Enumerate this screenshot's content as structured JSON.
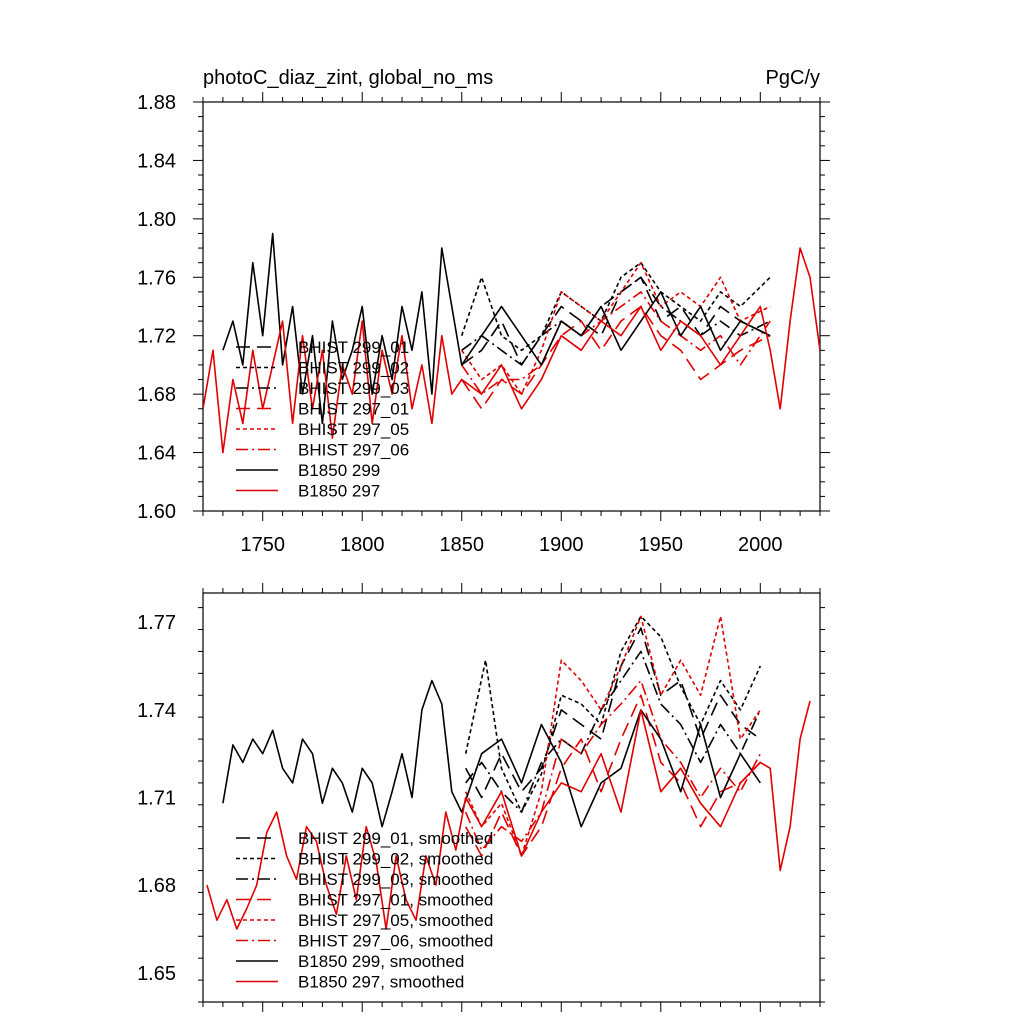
{
  "chart_data": [
    {
      "type": "line",
      "title": "photoC_diaz_zint, global_no_ms",
      "units": "PgC/y",
      "xlim": [
        1720,
        2030
      ],
      "ylim": [
        1.6,
        1.88
      ],
      "xticks": [
        1750,
        1800,
        1850,
        1900,
        1950,
        2000
      ],
      "yticks": [
        1.6,
        1.64,
        1.68,
        1.72,
        1.76,
        1.8,
        1.84,
        1.88
      ],
      "ytick_labels": [
        "1.60",
        "1.64",
        "1.68",
        "1.72",
        "1.76",
        "1.80",
        "1.84",
        "1.88"
      ],
      "legend": [
        "BHIST 299_01",
        "BHIST 299_02",
        "BHIST 299_03",
        "BHIST 297_01",
        "BHIST 297_05",
        "BHIST 297_06",
        "B1850 299",
        "B1850 297"
      ],
      "series": [
        {
          "name": "BHIST 299_01",
          "color": "#000000",
          "dash": "long-dash",
          "x": [
            1850,
            1860,
            1870,
            1880,
            1890,
            1900,
            1910,
            1920,
            1930,
            1940,
            1950,
            1960,
            1970,
            1980,
            1990,
            2005
          ],
          "y": [
            1.7,
            1.71,
            1.73,
            1.7,
            1.72,
            1.74,
            1.73,
            1.72,
            1.75,
            1.76,
            1.73,
            1.74,
            1.72,
            1.74,
            1.73,
            1.72
          ]
        },
        {
          "name": "BHIST 299_02",
          "color": "#000000",
          "dash": "short-dash",
          "x": [
            1850,
            1860,
            1870,
            1880,
            1890,
            1900,
            1910,
            1920,
            1930,
            1940,
            1950,
            1960,
            1970,
            1980,
            1990,
            2005
          ],
          "y": [
            1.72,
            1.76,
            1.72,
            1.71,
            1.72,
            1.75,
            1.74,
            1.73,
            1.76,
            1.77,
            1.75,
            1.74,
            1.73,
            1.75,
            1.74,
            1.76
          ]
        },
        {
          "name": "BHIST 299_03",
          "color": "#000000",
          "dash": "dash-dot",
          "x": [
            1850,
            1860,
            1870,
            1880,
            1890,
            1900,
            1910,
            1920,
            1930,
            1940,
            1950,
            1960,
            1970,
            1980,
            1990,
            2005
          ],
          "y": [
            1.71,
            1.72,
            1.71,
            1.7,
            1.72,
            1.73,
            1.72,
            1.74,
            1.75,
            1.76,
            1.74,
            1.73,
            1.72,
            1.73,
            1.72,
            1.73
          ]
        },
        {
          "name": "BHIST 297_01",
          "color": "#e00000",
          "dash": "long-dash",
          "x": [
            1850,
            1860,
            1870,
            1880,
            1890,
            1900,
            1910,
            1920,
            1930,
            1940,
            1950,
            1960,
            1970,
            1980,
            1990,
            2005
          ],
          "y": [
            1.69,
            1.67,
            1.69,
            1.68,
            1.7,
            1.72,
            1.73,
            1.71,
            1.73,
            1.74,
            1.72,
            1.71,
            1.69,
            1.7,
            1.71,
            1.72
          ]
        },
        {
          "name": "BHIST 297_05",
          "color": "#e00000",
          "dash": "short-dash",
          "x": [
            1850,
            1860,
            1870,
            1880,
            1890,
            1900,
            1910,
            1920,
            1930,
            1940,
            1950,
            1960,
            1970,
            1980,
            1990,
            2005
          ],
          "y": [
            1.71,
            1.69,
            1.7,
            1.68,
            1.71,
            1.75,
            1.74,
            1.73,
            1.75,
            1.77,
            1.74,
            1.75,
            1.74,
            1.76,
            1.73,
            1.74
          ]
        },
        {
          "name": "BHIST 297_06",
          "color": "#e00000",
          "dash": "dash-dot",
          "x": [
            1850,
            1860,
            1870,
            1880,
            1890,
            1900,
            1910,
            1920,
            1930,
            1940,
            1950,
            1960,
            1970,
            1980,
            1990,
            2005
          ],
          "y": [
            1.7,
            1.68,
            1.69,
            1.69,
            1.7,
            1.73,
            1.72,
            1.73,
            1.74,
            1.75,
            1.73,
            1.72,
            1.71,
            1.72,
            1.7,
            1.73
          ]
        },
        {
          "name": "B1850 299",
          "color": "#000000",
          "dash": "solid",
          "x": [
            1730,
            1735,
            1740,
            1745,
            1750,
            1755,
            1760,
            1765,
            1770,
            1775,
            1780,
            1785,
            1790,
            1795,
            1800,
            1805,
            1810,
            1815,
            1820,
            1825,
            1830,
            1835,
            1840,
            1845,
            1850,
            1860,
            1870,
            1880,
            1890,
            1900,
            1910,
            1920,
            1930,
            1940,
            1950,
            1960,
            1970,
            1980,
            1990,
            2005
          ],
          "y": [
            1.71,
            1.73,
            1.7,
            1.77,
            1.72,
            1.79,
            1.7,
            1.74,
            1.68,
            1.72,
            1.66,
            1.73,
            1.69,
            1.71,
            1.74,
            1.68,
            1.72,
            1.69,
            1.74,
            1.71,
            1.75,
            1.68,
            1.78,
            1.74,
            1.7,
            1.72,
            1.74,
            1.72,
            1.7,
            1.73,
            1.72,
            1.74,
            1.71,
            1.73,
            1.75,
            1.72,
            1.74,
            1.71,
            1.73,
            1.72
          ]
        },
        {
          "name": "B1850 297",
          "color": "#e00000",
          "dash": "solid",
          "x": [
            1720,
            1725,
            1730,
            1735,
            1740,
            1745,
            1750,
            1755,
            1760,
            1765,
            1770,
            1775,
            1780,
            1785,
            1790,
            1795,
            1800,
            1805,
            1810,
            1815,
            1820,
            1825,
            1830,
            1835,
            1840,
            1845,
            1850,
            1860,
            1870,
            1880,
            1890,
            1900,
            1910,
            1920,
            1930,
            1940,
            1950,
            1960,
            1970,
            1980,
            1990,
            2000,
            2005,
            2010,
            2015,
            2020,
            2025,
            2030
          ],
          "y": [
            1.67,
            1.71,
            1.64,
            1.69,
            1.66,
            1.71,
            1.67,
            1.7,
            1.73,
            1.66,
            1.72,
            1.67,
            1.71,
            1.65,
            1.7,
            1.68,
            1.73,
            1.66,
            1.71,
            1.68,
            1.72,
            1.67,
            1.7,
            1.66,
            1.72,
            1.68,
            1.69,
            1.68,
            1.7,
            1.67,
            1.69,
            1.72,
            1.71,
            1.73,
            1.72,
            1.74,
            1.71,
            1.73,
            1.72,
            1.7,
            1.72,
            1.74,
            1.71,
            1.67,
            1.73,
            1.78,
            1.76,
            1.71
          ]
        }
      ]
    },
    {
      "type": "line",
      "title": "",
      "units": "",
      "xlim": [
        1720,
        2030
      ],
      "ylim": [
        1.64,
        1.78
      ],
      "xticks": [
        1750,
        1800,
        1850,
        1900,
        1950,
        2000
      ],
      "yticks": [
        1.65,
        1.68,
        1.71,
        1.74,
        1.77
      ],
      "ytick_labels": [
        "1.65",
        "1.68",
        "1.71",
        "1.74",
        "1.77"
      ],
      "legend": [
        "BHIST 299_01, smoothed",
        "BHIST 299_02, smoothed",
        "BHIST 299_03, smoothed",
        "BHIST 297_01, smoothed",
        "BHIST 297_05, smoothed",
        "BHIST 297_06, smoothed",
        "B1850 299, smoothed",
        "B1850 297, smoothed"
      ],
      "series": [
        {
          "name": "BHIST 299_01, smoothed",
          "color": "#000000",
          "dash": "long-dash",
          "x": [
            1852,
            1860,
            1870,
            1880,
            1890,
            1900,
            1910,
            1920,
            1930,
            1940,
            1950,
            1960,
            1970,
            1980,
            1990,
            2000
          ],
          "y": [
            1.72,
            1.71,
            1.725,
            1.712,
            1.72,
            1.74,
            1.735,
            1.73,
            1.755,
            1.768,
            1.745,
            1.75,
            1.73,
            1.745,
            1.735,
            1.73
          ]
        },
        {
          "name": "BHIST 299_02, smoothed",
          "color": "#000000",
          "dash": "short-dash",
          "x": [
            1852,
            1862,
            1870,
            1880,
            1890,
            1900,
            1910,
            1920,
            1930,
            1940,
            1950,
            1960,
            1970,
            1980,
            1990,
            2000
          ],
          "y": [
            1.725,
            1.757,
            1.72,
            1.705,
            1.718,
            1.745,
            1.742,
            1.735,
            1.76,
            1.772,
            1.765,
            1.748,
            1.735,
            1.75,
            1.74,
            1.755
          ]
        },
        {
          "name": "BHIST 299_03, smoothed",
          "color": "#000000",
          "dash": "dash-dot",
          "x": [
            1852,
            1860,
            1870,
            1880,
            1890,
            1900,
            1910,
            1920,
            1930,
            1940,
            1950,
            1960,
            1970,
            1980,
            1990,
            2000
          ],
          "y": [
            1.715,
            1.722,
            1.712,
            1.705,
            1.722,
            1.73,
            1.725,
            1.74,
            1.75,
            1.76,
            1.742,
            1.735,
            1.722,
            1.735,
            1.725,
            1.74
          ]
        },
        {
          "name": "BHIST 297_01, smoothed",
          "color": "#e00000",
          "dash": "long-dash",
          "x": [
            1852,
            1860,
            1870,
            1880,
            1890,
            1900,
            1910,
            1920,
            1930,
            1940,
            1950,
            1960,
            1970,
            1980,
            1990,
            2000
          ],
          "y": [
            1.7,
            1.69,
            1.705,
            1.69,
            1.7,
            1.72,
            1.73,
            1.712,
            1.73,
            1.745,
            1.722,
            1.715,
            1.7,
            1.712,
            1.715,
            1.722
          ]
        },
        {
          "name": "BHIST 297_05, smoothed",
          "color": "#e00000",
          "dash": "short-dash",
          "x": [
            1852,
            1860,
            1870,
            1880,
            1890,
            1900,
            1910,
            1920,
            1930,
            1940,
            1950,
            1960,
            1970,
            1980,
            1990,
            2000
          ],
          "y": [
            1.712,
            1.7,
            1.708,
            1.69,
            1.712,
            1.757,
            1.75,
            1.74,
            1.755,
            1.772,
            1.745,
            1.757,
            1.745,
            1.772,
            1.73,
            1.74
          ]
        },
        {
          "name": "BHIST 297_06, smoothed",
          "color": "#e00000",
          "dash": "dash-dot",
          "x": [
            1852,
            1860,
            1870,
            1880,
            1890,
            1900,
            1910,
            1920,
            1930,
            1940,
            1950,
            1960,
            1970,
            1980,
            1990,
            2000
          ],
          "y": [
            1.705,
            1.692,
            1.7,
            1.695,
            1.705,
            1.73,
            1.725,
            1.735,
            1.742,
            1.75,
            1.73,
            1.722,
            1.71,
            1.72,
            1.712,
            1.725
          ]
        },
        {
          "name": "B1850 299, smoothed",
          "color": "#000000",
          "dash": "solid",
          "x": [
            1730,
            1735,
            1740,
            1745,
            1750,
            1755,
            1760,
            1765,
            1770,
            1775,
            1780,
            1785,
            1790,
            1795,
            1800,
            1805,
            1810,
            1815,
            1820,
            1825,
            1830,
            1835,
            1840,
            1845,
            1850,
            1860,
            1870,
            1880,
            1890,
            1900,
            1910,
            1920,
            1930,
            1940,
            1950,
            1960,
            1970,
            1980,
            1990,
            2000
          ],
          "y": [
            1.708,
            1.728,
            1.722,
            1.73,
            1.725,
            1.733,
            1.72,
            1.715,
            1.73,
            1.725,
            1.708,
            1.72,
            1.715,
            1.705,
            1.72,
            1.715,
            1.7,
            1.712,
            1.725,
            1.71,
            1.74,
            1.75,
            1.742,
            1.712,
            1.705,
            1.725,
            1.73,
            1.715,
            1.735,
            1.722,
            1.7,
            1.715,
            1.72,
            1.74,
            1.73,
            1.712,
            1.735,
            1.71,
            1.725,
            1.715
          ]
        },
        {
          "name": "B1850 297, smoothed",
          "color": "#e00000",
          "dash": "solid",
          "x": [
            1722,
            1727,
            1732,
            1737,
            1742,
            1747,
            1752,
            1757,
            1762,
            1767,
            1772,
            1777,
            1782,
            1787,
            1792,
            1797,
            1802,
            1807,
            1812,
            1817,
            1822,
            1827,
            1832,
            1837,
            1842,
            1847,
            1852,
            1860,
            1870,
            1880,
            1890,
            1900,
            1910,
            1920,
            1930,
            1940,
            1950,
            1960,
            1970,
            1980,
            1990,
            2000,
            2005,
            2010,
            2015,
            2020,
            2025
          ],
          "y": [
            1.68,
            1.668,
            1.675,
            1.665,
            1.672,
            1.68,
            1.698,
            1.705,
            1.69,
            1.682,
            1.7,
            1.695,
            1.68,
            1.67,
            1.69,
            1.675,
            1.7,
            1.688,
            1.665,
            1.69,
            1.675,
            1.668,
            1.69,
            1.68,
            1.705,
            1.692,
            1.71,
            1.7,
            1.712,
            1.69,
            1.705,
            1.715,
            1.712,
            1.725,
            1.705,
            1.74,
            1.712,
            1.72,
            1.708,
            1.7,
            1.715,
            1.722,
            1.72,
            1.685,
            1.7,
            1.73,
            1.743
          ]
        }
      ]
    }
  ]
}
